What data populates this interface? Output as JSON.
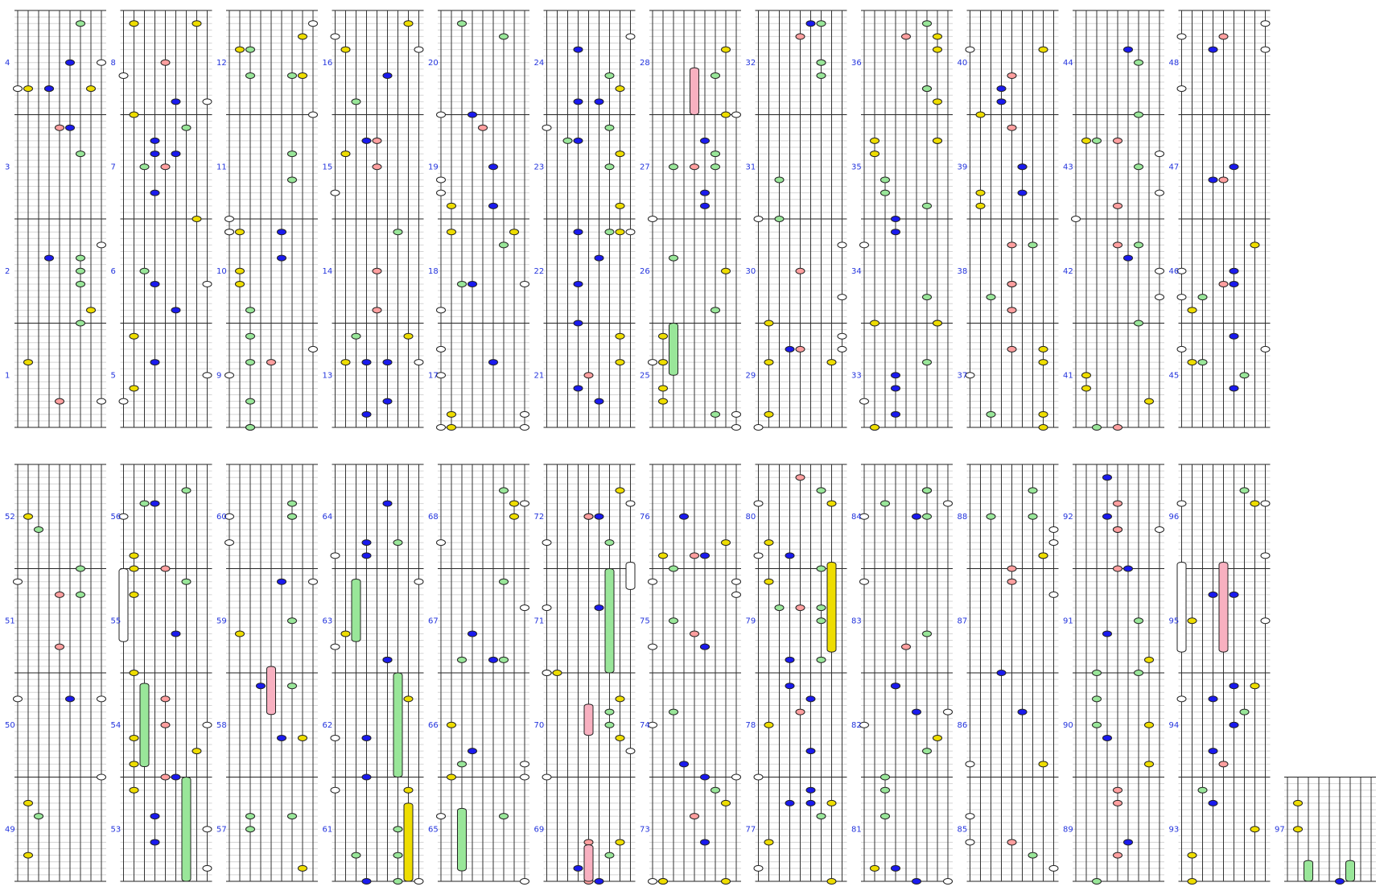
{
  "measure_labels": [
    "1",
    "2",
    "3",
    "4",
    "5",
    "6",
    "7",
    "8",
    "9",
    "10",
    "11",
    "12",
    "13",
    "14",
    "15",
    "16",
    "17",
    "18",
    "19",
    "20",
    "21",
    "22",
    "23",
    "24",
    "25",
    "26",
    "27",
    "28",
    "29",
    "30",
    "31",
    "32",
    "33",
    "34",
    "35",
    "36",
    "37",
    "38",
    "39",
    "40",
    "41",
    "42",
    "43",
    "44",
    "45",
    "46",
    "47",
    "48",
    "49",
    "50",
    "51",
    "52",
    "53",
    "54",
    "55",
    "56",
    "57",
    "58",
    "59",
    "60",
    "61",
    "62",
    "63",
    "64",
    "65",
    "66",
    "67",
    "68",
    "69",
    "70",
    "71",
    "72",
    "73",
    "74",
    "75",
    "76",
    "77",
    "78",
    "79",
    "80",
    "81",
    "82",
    "83",
    "84",
    "85",
    "86",
    "87",
    "88",
    "89",
    "90",
    "91",
    "92",
    "93",
    "94",
    "95",
    "96",
    "97"
  ]
}
